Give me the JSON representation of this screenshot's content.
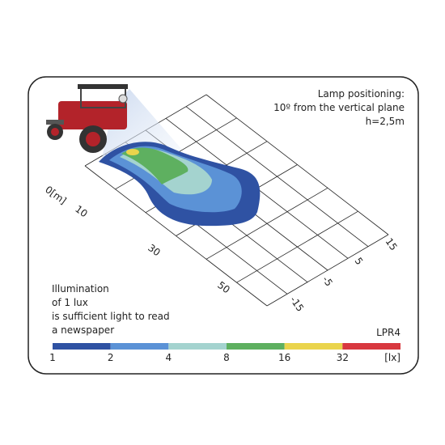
{
  "header": {
    "lines": [
      "Lamp positioning:",
      "10º from the vertical plane",
      "h=2,5m"
    ]
  },
  "distance_axis": {
    "labels": [
      "0[m]",
      "10",
      "30",
      "50"
    ]
  },
  "lateral_axis": {
    "labels": [
      "15",
      "5",
      "-5",
      "-15"
    ]
  },
  "note": {
    "lines": [
      "Illumination",
      "of 1 lux",
      "is sufficient light to read",
      "a newspaper"
    ]
  },
  "model": "LPR4",
  "scale": {
    "unit": "[lx]",
    "stops": [
      {
        "label": "1",
        "color": "#2f52a3"
      },
      {
        "label": "2",
        "color": "#5b92d6"
      },
      {
        "label": "4",
        "color": "#a4d3cf"
      },
      {
        "label": "8",
        "color": "#5eb060"
      },
      {
        "label": "16",
        "color": "#ead44c"
      },
      {
        "label": "32",
        "color": "#d8383f"
      }
    ]
  }
}
